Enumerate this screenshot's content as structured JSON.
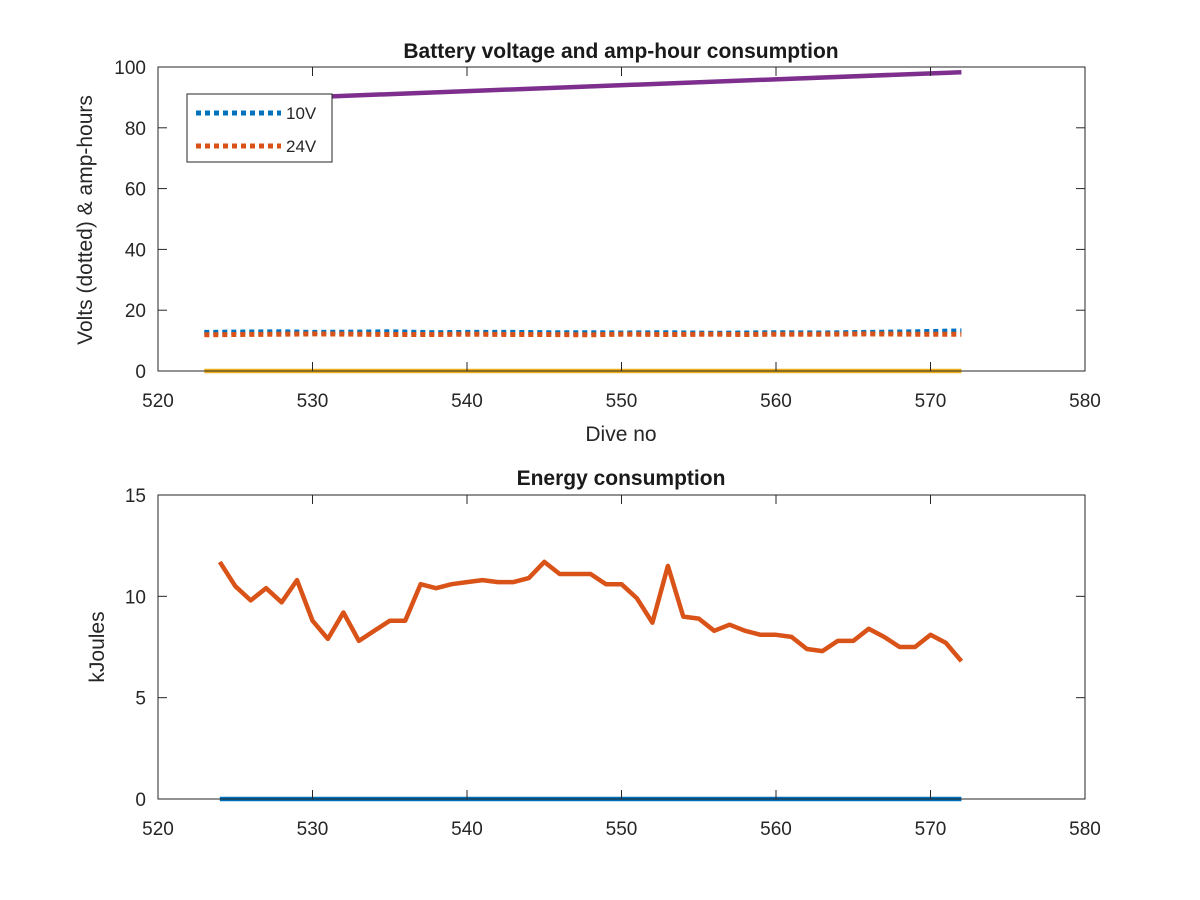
{
  "chart_data": [
    {
      "type": "line",
      "title": "Battery voltage and amp-hour consumption",
      "xlabel": "Dive no",
      "ylabel": "Volts (dotted) & amp-hours",
      "xlim": [
        520,
        580
      ],
      "ylim": [
        0,
        100
      ],
      "xticks": [
        520,
        530,
        540,
        550,
        560,
        570,
        580
      ],
      "yticks": [
        0,
        20,
        40,
        60,
        80,
        100
      ],
      "legend_position": "top-left",
      "series": [
        {
          "name": "10V",
          "color": "#0072BD",
          "style": "dotted",
          "x": [
            523,
            525,
            528,
            530,
            533,
            535,
            538,
            540,
            543,
            545,
            548,
            550,
            553,
            556,
            558,
            560,
            563,
            566,
            569,
            572
          ],
          "y": [
            12.7,
            12.8,
            12.9,
            12.7,
            12.8,
            12.9,
            12.6,
            12.7,
            12.7,
            12.6,
            12.6,
            12.5,
            12.6,
            12.4,
            12.5,
            12.6,
            12.5,
            12.7,
            12.9,
            13.2
          ]
        },
        {
          "name": "24V",
          "color": "#D95319",
          "style": "dotted",
          "x": [
            523,
            525,
            528,
            530,
            533,
            535,
            538,
            540,
            543,
            545,
            548,
            550,
            553,
            556,
            558,
            560,
            563,
            566,
            569,
            572
          ],
          "y": [
            11.9,
            12.0,
            12.1,
            12.2,
            12.1,
            12.0,
            12.0,
            12.1,
            12.0,
            12.0,
            11.9,
            12.1,
            12.0,
            12.1,
            12.0,
            12.1,
            12.1,
            12.2,
            12.1,
            12.1
          ]
        },
        {
          "color": "#7E2F8E",
          "style": "solid",
          "x": [
            531,
            572
          ],
          "y": [
            90.3,
            98.3
          ]
        },
        {
          "color": "#EDB120",
          "style": "solid",
          "x": [
            523,
            572
          ],
          "y": [
            0,
            0
          ]
        }
      ]
    },
    {
      "type": "line",
      "title": "Energy consumption",
      "xlabel": "",
      "ylabel": "kJoules",
      "xlim": [
        520,
        580
      ],
      "ylim": [
        0,
        15
      ],
      "xticks": [
        520,
        530,
        540,
        550,
        560,
        570,
        580
      ],
      "yticks": [
        0,
        5,
        10,
        15
      ],
      "series": [
        {
          "color": "#D95319",
          "style": "solid",
          "x": [
            524,
            525,
            526,
            527,
            528,
            529,
            530,
            531,
            532,
            533,
            534,
            535,
            536,
            537,
            538,
            539,
            540,
            541,
            542,
            543,
            544,
            545,
            546,
            547,
            548,
            549,
            550,
            551,
            552,
            553,
            554,
            555,
            556,
            557,
            558,
            559,
            560,
            561,
            562,
            563,
            564,
            565,
            566,
            567,
            568,
            569,
            570,
            571,
            572
          ],
          "y": [
            11.7,
            10.5,
            9.8,
            10.4,
            9.7,
            10.8,
            8.8,
            7.9,
            9.2,
            7.8,
            8.3,
            8.8,
            8.8,
            10.6,
            10.4,
            10.6,
            10.7,
            10.8,
            10.7,
            10.7,
            10.9,
            11.7,
            11.1,
            11.1,
            11.1,
            10.6,
            10.6,
            9.9,
            8.7,
            11.5,
            9.0,
            8.9,
            8.3,
            8.6,
            8.3,
            8.1,
            8.1,
            8.0,
            7.4,
            7.3,
            7.8,
            7.8,
            8.4,
            8.0,
            7.5,
            7.5,
            8.1,
            7.7,
            6.8
          ]
        },
        {
          "color": "#0072BD",
          "style": "solid",
          "x": [
            524,
            572
          ],
          "y": [
            0,
            0
          ]
        }
      ]
    }
  ]
}
